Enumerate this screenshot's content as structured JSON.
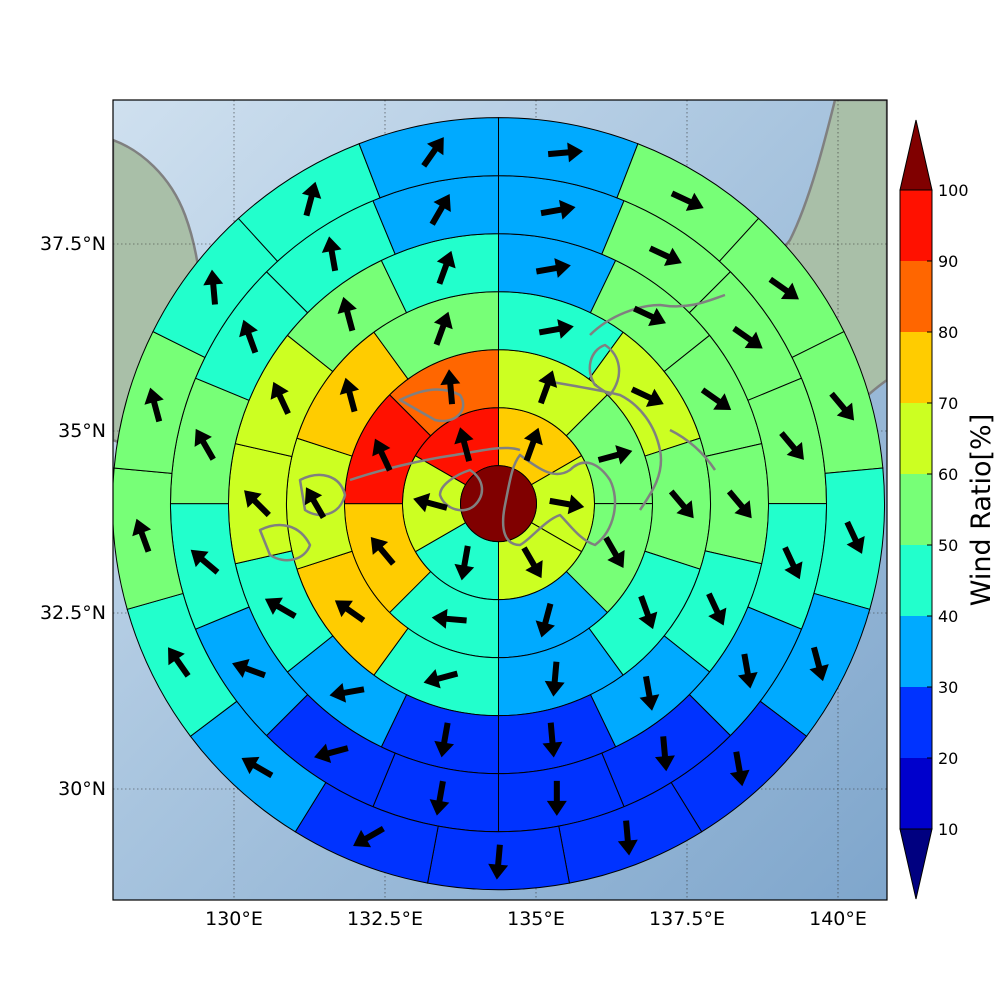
{
  "chart_data": {
    "type": "polar-sector-map",
    "x_ticks": [
      {
        "lon": 130.0,
        "label": "130°E"
      },
      {
        "lon": 132.5,
        "label": "132.5°E"
      },
      {
        "lon": 135.0,
        "label": "135°E"
      },
      {
        "lon": 137.5,
        "label": "137.5°E"
      },
      {
        "lon": 140.0,
        "label": "140°E"
      }
    ],
    "y_ticks": [
      {
        "lat": 30.0,
        "label": "30°N"
      },
      {
        "lat": 32.5,
        "label": "32.5°N"
      },
      {
        "lat": 35.0,
        "label": "35°N"
      },
      {
        "lat": 37.5,
        "label": "37.5°N"
      }
    ],
    "xlim": [
      128.0,
      140.85
    ],
    "ylim": [
      28.5,
      39.4
    ],
    "grid": true,
    "center": {
      "lon": 134.4,
      "lat": 33.9,
      "value": 100
    },
    "colorbar": {
      "label": "Wind Ratio[%]",
      "bounds": [
        10,
        20,
        30,
        40,
        50,
        60,
        70,
        80,
        90,
        100
      ],
      "tick_labels": [
        "10",
        "20",
        "30",
        "40",
        "50",
        "60",
        "70",
        "80",
        "90",
        "100"
      ],
      "colors": [
        "#0000cc",
        "#0033ff",
        "#00aaff",
        "#22ffcc",
        "#77ff77",
        "#ccff22",
        "#ffcc00",
        "#ff6600",
        "#ff1100"
      ],
      "under_color": "#000080",
      "over_color": "#800000",
      "extend": "both"
    },
    "rings": [
      {
        "name": "ring1",
        "sectors": [
          {
            "value": 72,
            "dir": 20
          },
          {
            "value": 65,
            "dir": 100
          },
          {
            "value": 62,
            "dir": 150
          },
          {
            "value": 44,
            "dir": 190
          },
          {
            "value": 65,
            "dir": 285
          },
          {
            "value": 95,
            "dir": 345
          }
        ]
      },
      {
        "name": "ring2",
        "sectors": [
          {
            "value": 62,
            "dir": 20
          },
          {
            "value": 52,
            "dir": 75
          },
          {
            "value": 57,
            "dir": 150
          },
          {
            "value": 33,
            "dir": 195
          },
          {
            "value": 45,
            "dir": 275
          },
          {
            "value": 75,
            "dir": 320
          },
          {
            "value": 94,
            "dir": 335
          },
          {
            "value": 82,
            "dir": 355
          }
        ]
      },
      {
        "name": "ring3",
        "sectors": [
          {
            "value": 44,
            "dir": 80
          },
          {
            "value": 62,
            "dir": 115
          },
          {
            "value": 52,
            "dir": 140
          },
          {
            "value": 42,
            "dir": 160
          },
          {
            "value": 33,
            "dir": 185
          },
          {
            "value": 40,
            "dir": 255
          },
          {
            "value": 72,
            "dir": 305
          },
          {
            "value": 65,
            "dir": 330
          },
          {
            "value": 74,
            "dir": 345
          },
          {
            "value": 57,
            "dir": 20
          }
        ]
      },
      {
        "name": "ring4",
        "sectors": [
          {
            "value": 33,
            "dir": 80
          },
          {
            "value": 52,
            "dir": 115
          },
          {
            "value": 55,
            "dir": 125
          },
          {
            "value": 55,
            "dir": 140
          },
          {
            "value": 45,
            "dir": 155
          },
          {
            "value": 33,
            "dir": 170
          },
          {
            "value": 24,
            "dir": 175
          },
          {
            "value": 24,
            "dir": 190
          },
          {
            "value": 33,
            "dir": 260
          },
          {
            "value": 45,
            "dir": 300
          },
          {
            "value": 62,
            "dir": 315
          },
          {
            "value": 65,
            "dir": 335
          },
          {
            "value": 55,
            "dir": 345
          },
          {
            "value": 44,
            "dir": 20
          }
        ]
      },
      {
        "name": "ring5",
        "sectors": [
          {
            "value": 33,
            "dir": 80
          },
          {
            "value": 52,
            "dir": 115
          },
          {
            "value": 55,
            "dir": 125
          },
          {
            "value": 55,
            "dir": 140
          },
          {
            "value": 45,
            "dir": 155
          },
          {
            "value": 33,
            "dir": 170
          },
          {
            "value": 24,
            "dir": 175
          },
          {
            "value": 24,
            "dir": 180
          },
          {
            "value": 24,
            "dir": 190
          },
          {
            "value": 24,
            "dir": 255
          },
          {
            "value": 33,
            "dir": 290
          },
          {
            "value": 45,
            "dir": 310
          },
          {
            "value": 55,
            "dir": 330
          },
          {
            "value": 45,
            "dir": 340
          },
          {
            "value": 45,
            "dir": 350
          },
          {
            "value": 33,
            "dir": 30
          }
        ]
      },
      {
        "name": "ring6",
        "sectors": [
          {
            "value": 33,
            "dir": 85
          },
          {
            "value": 52,
            "dir": 115
          },
          {
            "value": 55,
            "dir": 125
          },
          {
            "value": 55,
            "dir": 140
          },
          {
            "value": 45,
            "dir": 155
          },
          {
            "value": 33,
            "dir": 165
          },
          {
            "value": 24,
            "dir": 170
          },
          {
            "value": 24,
            "dir": 175
          },
          {
            "value": 24,
            "dir": 185
          },
          {
            "value": 24,
            "dir": 240
          },
          {
            "value": 33,
            "dir": 300
          },
          {
            "value": 45,
            "dir": 325
          },
          {
            "value": 55,
            "dir": 340
          },
          {
            "value": 55,
            "dir": 345
          },
          {
            "value": 45,
            "dir": 355
          },
          {
            "value": 45,
            "dir": 15
          },
          {
            "value": 33,
            "dir": 35
          }
        ]
      }
    ]
  }
}
